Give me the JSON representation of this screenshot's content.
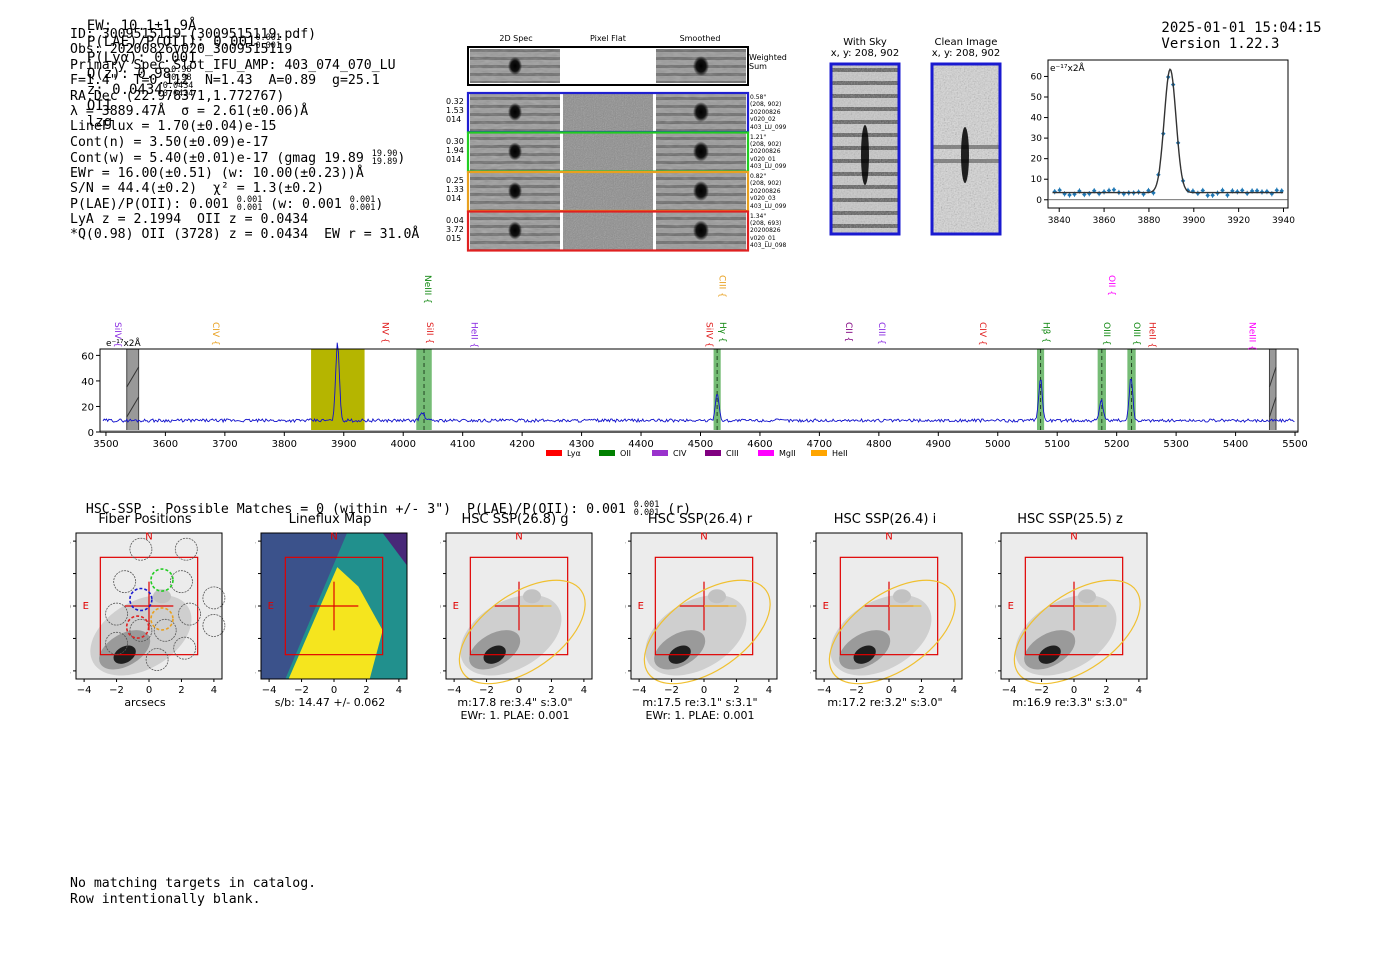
{
  "header": {
    "left_parts": [
      "EW: 10.1±1.9Å",
      "P(LAE)/P(OII): 0.001",
      "P(Lyα): 0.001",
      "Q(z): 0.98",
      "z: 0.0434",
      "OII",
      "lzg"
    ],
    "plae_frac": [
      "0.001",
      "0.001"
    ],
    "qz_frac": [
      "0.98",
      "0.98"
    ],
    "z_frac": [
      "0.0434",
      "0.0434"
    ],
    "timestamp": "2025-01-01 15:04:15",
    "version": "Version 1.22.3"
  },
  "info": {
    "lines": [
      "ID: 3009515119 (3009515119.pdf)",
      "Obs: 20200826v020_3009515119",
      "Primary Spec_Slot_IFU_AMP: 403_074_070_LU",
      "F=1.4\"  T=0.112  N=1.43  A=0.89  g=25.1",
      "RA,Dec (22.978371,1.772767)",
      "λ = 3889.47Å  σ = 2.61(±0.06)Å",
      "LineFlux = 1.70(±0.04)e-15",
      "Cont(n) = 3.50(±0.09)e-17",
      "Cont(w) = 5.40(±0.01)e-17 (gmag 19.89",
      "EWr = 16.00(±0.51) (w: 10.00(±0.23))Å",
      "S/N = 44.4(±0.2)  χ² = 1.3(±0.2)",
      "P(LAE)/P(OII): 0.001",
      "LyA z = 2.1994  OII z = 0.0434",
      "*Q(0.98) OII (3728) z = 0.0434  EW r = 31.0Å"
    ],
    "gmag_frac": [
      "19.90",
      "19.89"
    ],
    "plae_frac": [
      "0.001",
      "0.001"
    ],
    "plae_w_text": "(w: 0.001",
    "plae_w_frac": [
      "0.001",
      "0.001"
    ]
  },
  "cutouts": {
    "columns": [
      "2D Spec",
      "Pixel Flat",
      "Smoothed"
    ],
    "weighted_label": "Weighted Sum",
    "rows": [
      {
        "left": [
          "0.32",
          "1.53",
          "014"
        ],
        "right": [
          "0.58\"",
          "(208, 902)",
          "20200826",
          "v020_02",
          "403_LU_099"
        ],
        "color": "#1f1fd0"
      },
      {
        "left": [
          "0.30",
          "1.94",
          "014"
        ],
        "right": [
          "1.21\"",
          "(208, 902)",
          "20200826",
          "v020_01",
          "403_LU_099"
        ],
        "color": "#22cc22"
      },
      {
        "left": [
          "0.25",
          "1.33",
          "014"
        ],
        "right": [
          "0.82\"",
          "(208, 902)",
          "20200826",
          "v020_03",
          "403_LU_099"
        ],
        "color": "#e8a020"
      },
      {
        "left": [
          "0.04",
          "3.72",
          "015"
        ],
        "right": [
          "1.34\"",
          "(208, 693)",
          "20200826",
          "v020_01",
          "403_LU_098"
        ],
        "color": "#e02020"
      }
    ]
  },
  "sky": {
    "with_sky": "With Sky",
    "with_sky_xy": "x, y: 208, 902",
    "clean": "Clean Image",
    "clean_xy": "x, y: 208, 902"
  },
  "zoom_chart": {
    "type": "scatter",
    "unit_label": "e⁻¹⁷x2Å",
    "xlim": [
      3835,
      3942
    ],
    "ylim": [
      -4,
      68
    ],
    "xticks": [
      3840,
      3860,
      3880,
      3900,
      3920,
      3940
    ],
    "yticks": [
      0,
      10,
      20,
      30,
      40,
      50,
      60
    ],
    "fit_center": 3889.47,
    "fit_sigma": 2.61,
    "fit_peak": 60,
    "fit_cont": 3.5
  },
  "chart_data": {
    "type": "line",
    "title": "",
    "unit_label": "e⁻¹⁷x2Å",
    "xlim": [
      3490,
      5505
    ],
    "ylim": [
      0,
      65
    ],
    "xticks": [
      3500,
      3600,
      3700,
      3800,
      3900,
      4000,
      4100,
      4200,
      4300,
      4400,
      4500,
      4600,
      4700,
      4800,
      4900,
      5000,
      5100,
      5200,
      5300,
      5400,
      5500
    ],
    "yticks": [
      0,
      20,
      40,
      60
    ],
    "continuum": 9,
    "peaks": [
      {
        "x": 3889.5,
        "height": 62,
        "width": 3
      },
      {
        "x": 4032,
        "height": 6,
        "width": 4
      },
      {
        "x": 4528,
        "height": 22,
        "width": 3
      },
      {
        "x": 5072,
        "height": 33,
        "width": 3
      },
      {
        "x": 5174,
        "height": 16,
        "width": 3
      },
      {
        "x": 5224,
        "height": 34,
        "width": 3
      }
    ],
    "main_band": [
      3845,
      3935
    ],
    "green_bands": [
      [
        4022,
        4048
      ],
      [
        4522,
        4534
      ],
      [
        5066,
        5078
      ],
      [
        5168,
        5182
      ],
      [
        5218,
        5232
      ]
    ],
    "gray_bands": [
      [
        3535,
        3555
      ],
      [
        5457,
        5468
      ]
    ],
    "line_labels": [
      {
        "name": "SiIV",
        "x": 3510,
        "color": "#8a2be2",
        "level": 1
      },
      {
        "name": "CIV",
        "x": 3675,
        "color": "#e8a020",
        "level": 1
      },
      {
        "name": "NV",
        "x": 3960,
        "color": "#e02020",
        "level": 1
      },
      {
        "name": "SiII",
        "x": 4035,
        "color": "#e02020",
        "level": 1
      },
      {
        "name": "NeIII",
        "x": 4032,
        "color": "#118811",
        "level": 0
      },
      {
        "name": "HeII",
        "x": 4110,
        "color": "#8a2be2",
        "level": 1
      },
      {
        "name": "SiIV",
        "x": 4505,
        "color": "#e02020",
        "level": 1
      },
      {
        "name": "CIII",
        "x": 4527,
        "color": "#e8a020",
        "level": 0
      },
      {
        "name": "Hγ",
        "x": 4528,
        "color": "#118811",
        "level": 1
      },
      {
        "name": "CII",
        "x": 4740,
        "color": "#800080",
        "level": 1
      },
      {
        "name": "CIII",
        "x": 4795,
        "color": "#8a2be2",
        "level": 1
      },
      {
        "name": "CIV",
        "x": 4965,
        "color": "#e02020",
        "level": 1
      },
      {
        "name": "Hβ",
        "x": 5072,
        "color": "#118811",
        "level": 1
      },
      {
        "name": "OII",
        "x": 5182,
        "color": "#ff00ff",
        "level": 0
      },
      {
        "name": "OIII",
        "x": 5174,
        "color": "#118811",
        "level": 1
      },
      {
        "name": "OIII",
        "x": 5224,
        "color": "#118811",
        "level": 1
      },
      {
        "name": "HeII",
        "x": 5250,
        "color": "#e02020",
        "level": 1
      },
      {
        "name": "NeIII",
        "x": 5418,
        "color": "#ff00ff",
        "level": 1
      }
    ],
    "legend": [
      {
        "name": "Lyα",
        "color": "#ff0000"
      },
      {
        "name": "OII",
        "color": "#008000"
      },
      {
        "name": "CIV",
        "color": "#9932cc"
      },
      {
        "name": "CIII",
        "color": "#800080"
      },
      {
        "name": "MgII",
        "color": "#ff00ff"
      },
      {
        "name": "HeII",
        "color": "#ffa500"
      }
    ]
  },
  "hsc": {
    "heading": "HSC-SSP : Possible Matches = 0 (within +/- 3\")  P(LAE)/P(OII): 0.001",
    "heading_frac": [
      "0.001",
      "0.001"
    ],
    "heading_tail": "(r)",
    "panels": [
      {
        "title": "Fiber Positions",
        "caption1": "arcsecs",
        "caption2": ""
      },
      {
        "title": "Lineflux Map",
        "caption1": "s/b: 14.47 +/- 0.062",
        "caption2": ""
      },
      {
        "title": "HSC SSP(26.8) g",
        "caption1": "m:17.8  re:3.4\"  s:3.0\"",
        "caption2": "EWr: 1. PLAE: 0.001"
      },
      {
        "title": "HSC SSP(26.4) r",
        "caption1": "m:17.5  re:3.1\"  s:3.1\"",
        "caption2": "EWr: 1. PLAE: 0.001"
      },
      {
        "title": "HSC SSP(26.4) i",
        "caption1": "m:17.2  re:3.2\"  s:3.0\"",
        "caption2": ""
      },
      {
        "title": "HSC SSP(25.5) z",
        "caption1": "m:16.9  re:3.3\"  s:3.0\"",
        "caption2": ""
      }
    ],
    "ticks": [
      -4,
      -2,
      0,
      2,
      4
    ],
    "north": "N",
    "east": "E"
  },
  "footer": {
    "line1": "No matching targets in catalog.",
    "line2": "Row intentionally blank."
  }
}
